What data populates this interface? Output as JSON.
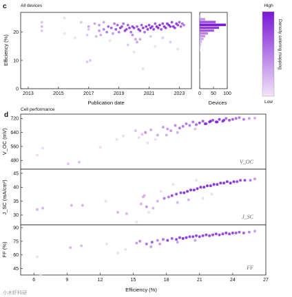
{
  "figure": {
    "panel_c": "c",
    "panel_c_subtitle": "All devices",
    "panel_d": "d",
    "panel_d_subtitle": "Cell performance",
    "watermark": "小木虾科研"
  },
  "colors": {
    "low": "#ecd6f6",
    "high": "#7a16d6"
  },
  "colorbar": {
    "high_label": "High",
    "low_label": "Low",
    "title": "Density coloring mapping"
  },
  "chart_data": [
    {
      "type": "scatter",
      "id": "efficiency-vs-date",
      "xlabel": "Publication date",
      "ylabel": "Efficiency (%)",
      "xlim": [
        2012.5,
        2023.8
      ],
      "ylim": [
        0,
        27
      ],
      "xticks": [
        "2013",
        "2015",
        "2017",
        "2019",
        "2021",
        "2023"
      ],
      "yticks": [
        "0",
        "10",
        "20"
      ],
      "x": [
        2013.9,
        2013.9,
        2013.9,
        2015.4,
        2015.4,
        2016.1,
        2016.5,
        2016.9,
        2016.9,
        2017.0,
        2017.1,
        2017.0,
        2017.4,
        2017.5,
        2017.7,
        2017.7,
        2017.8,
        2018.0,
        2018.0,
        2018.2,
        2018.3,
        2018.5,
        2018.6,
        2018.7,
        2018.8,
        2018.9,
        2019.0,
        2019.1,
        2019.2,
        2019.3,
        2019.4,
        2019.5,
        2019.6,
        2019.7,
        2019.8,
        2019.9,
        2020.0,
        2020.1,
        2020.2,
        2020.3,
        2020.4,
        2020.5,
        2020.6,
        2020.7,
        2020.8,
        2020.9,
        2021.0,
        2021.1,
        2021.2,
        2021.3,
        2021.4,
        2021.5,
        2021.6,
        2021.7,
        2021.8,
        2021.9,
        2022.0,
        2022.1,
        2022.2,
        2022.3,
        2022.4,
        2022.5,
        2022.6,
        2022.7,
        2022.8,
        2022.9,
        2023.0,
        2023.1,
        2023.2,
        2023.3,
        2018.4,
        2019.6,
        2020.0,
        2020.2,
        2020.6,
        2021.4,
        2021.9,
        2022.4,
        2022.9,
        2019.9,
        2020.4,
        2021.1
      ],
      "y": [
        22.0,
        20.5,
        23.5,
        25.0,
        19.5,
        18.0,
        23.5,
        19.0,
        9.5,
        21.0,
        10.0,
        22.0,
        23.0,
        18.5,
        20.5,
        22.5,
        19.0,
        21.0,
        23.5,
        20.0,
        22.0,
        21.5,
        19.5,
        23.0,
        21.0,
        22.5,
        20.0,
        21.5,
        22.0,
        23.0,
        20.5,
        21.0,
        22.5,
        21.5,
        20.0,
        22.0,
        21.5,
        17.5,
        22.0,
        21.0,
        20.5,
        22.5,
        21.5,
        20.0,
        22.0,
        21.0,
        22.5,
        21.5,
        22.0,
        21.0,
        23.0,
        22.0,
        21.5,
        22.5,
        21.0,
        23.0,
        22.0,
        21.5,
        23.0,
        22.5,
        22.0,
        23.5,
        22.0,
        21.5,
        23.0,
        22.5,
        23.5,
        22.0,
        23.0,
        22.5,
        17.0,
        15.5,
        13.0,
        16.5,
        7.0,
        15.0,
        18.0,
        16.5,
        14.0,
        19.0,
        17.5,
        18.5
      ]
    },
    {
      "type": "bar",
      "id": "devices-histogram",
      "orientation": "horizontal",
      "xlabel": "Devices",
      "xlim": [
        0,
        100
      ],
      "xticks": [
        "0",
        "50",
        "100"
      ],
      "ylim": [
        0,
        27
      ],
      "bins": [
        6.5,
        13.5,
        14.5,
        15.5,
        16.5,
        17.5,
        18.5,
        19.5,
        20.5,
        21.5,
        22.5,
        23.5,
        24.5,
        25.5
      ],
      "counts": [
        2,
        1,
        3,
        5,
        8,
        14,
        20,
        30,
        52,
        70,
        95,
        58,
        20,
        4
      ]
    },
    {
      "type": "scatter",
      "id": "voc-vs-efficiency",
      "annotation": "V_OC",
      "ylabel": "V_OC (mV)",
      "xlim": [
        4.8,
        27
      ],
      "ylim": [
        430,
        745
      ],
      "yticks": [
        "480",
        "560",
        "640",
        "720"
      ],
      "x": [
        6.3,
        6.8,
        9.1,
        10.1,
        12.0,
        13.5,
        14.1,
        15.2,
        15.5,
        16.1,
        16.6,
        17.2,
        17.7,
        18.1,
        18.4,
        18.8,
        19.2,
        19.5,
        19.8,
        20.1,
        20.4,
        20.7,
        21.0,
        21.3,
        21.6,
        21.9,
        22.2,
        22.5,
        22.8,
        23.1,
        23.4,
        23.7,
        24.0,
        24.3,
        24.6,
        25.0,
        25.5,
        26.0,
        21.5,
        22.0,
        22.6,
        23.2,
        20.6,
        19.0,
        18.0,
        17.0,
        16.3,
        15.8
      ],
      "y": [
        510,
        550,
        460,
        470,
        555,
        600,
        620,
        650,
        610,
        640,
        655,
        625,
        670,
        660,
        650,
        680,
        665,
        675,
        690,
        680,
        700,
        685,
        695,
        705,
        690,
        700,
        710,
        700,
        715,
        705,
        720,
        710,
        715,
        720,
        725,
        715,
        720,
        722,
        690,
        705,
        700,
        710,
        660,
        640,
        625,
        600,
        580,
        630
      ]
    },
    {
      "type": "scatter",
      "id": "jsc-vs-efficiency",
      "annotation": "J_SC",
      "ylabel": "J_SC (mA/cm²)",
      "xlim": [
        4.8,
        27
      ],
      "ylim": [
        26.5,
        46.5
      ],
      "yticks": [
        "30",
        "35",
        "40",
        "45"
      ],
      "x": [
        6.3,
        6.8,
        9.4,
        10.4,
        12.5,
        13.6,
        14.4,
        15.3,
        15.7,
        16.2,
        16.8,
        17.2,
        17.8,
        18.2,
        18.5,
        18.9,
        19.3,
        19.6,
        19.9,
        20.2,
        20.5,
        20.8,
        21.1,
        21.4,
        21.7,
        22.0,
        22.3,
        22.6,
        22.9,
        23.2,
        23.5,
        23.8,
        24.1,
        24.4,
        24.7,
        25.1,
        25.6,
        26.0,
        21.3,
        22.1,
        16.0,
        17.5,
        19.0,
        20.0,
        18.6,
        15.9,
        16.4,
        20.7
      ],
      "y": [
        32.0,
        32.5,
        33.5,
        33.5,
        35.0,
        31.0,
        30.5,
        27.5,
        34.0,
        33.0,
        32.5,
        35.0,
        36.0,
        36.5,
        37.0,
        37.5,
        38.0,
        38.0,
        38.5,
        39.0,
        39.0,
        39.5,
        40.0,
        40.0,
        40.5,
        40.5,
        41.0,
        41.0,
        41.5,
        41.5,
        42.0,
        41.5,
        42.0,
        42.0,
        42.5,
        42.5,
        42.5,
        43.0,
        36.0,
        37.5,
        37.0,
        38.5,
        34.5,
        35.5,
        41.0,
        36.5,
        31.0,
        42.5
      ]
    },
    {
      "type": "scatter",
      "id": "ff-vs-efficiency",
      "annotation": "FF",
      "ylabel": "FF (%)",
      "xlabel": "Efficiency (%)",
      "xlim": [
        4.8,
        27
      ],
      "ylim": [
        38,
        93
      ],
      "yticks": [
        "45",
        "60",
        "75",
        "90"
      ],
      "xticks": [
        "6",
        "9",
        "12",
        "15",
        "18",
        "21",
        "24",
        "27"
      ],
      "x": [
        6.3,
        6.6,
        9.3,
        10.3,
        12.6,
        13.6,
        14.3,
        15.3,
        15.6,
        16.2,
        16.7,
        17.2,
        17.7,
        18.1,
        18.5,
        18.9,
        19.2,
        19.5,
        19.8,
        20.1,
        20.4,
        20.7,
        21.0,
        21.3,
        21.6,
        21.9,
        22.2,
        22.5,
        22.8,
        23.1,
        23.4,
        23.7,
        24.0,
        24.3,
        24.6,
        25.0,
        25.5,
        26.0,
        17.4,
        19.0,
        20.6,
        16.6
      ],
      "y": [
        58,
        38,
        68,
        70,
        72,
        62,
        66,
        73,
        75,
        72,
        74,
        76,
        77,
        76,
        78,
        77,
        79,
        78,
        79,
        80,
        80,
        81,
        80,
        81,
        82,
        81,
        82,
        83,
        82,
        83,
        84,
        83,
        84,
        84,
        85,
        84,
        85,
        86,
        72,
        74,
        76,
        69
      ]
    }
  ]
}
